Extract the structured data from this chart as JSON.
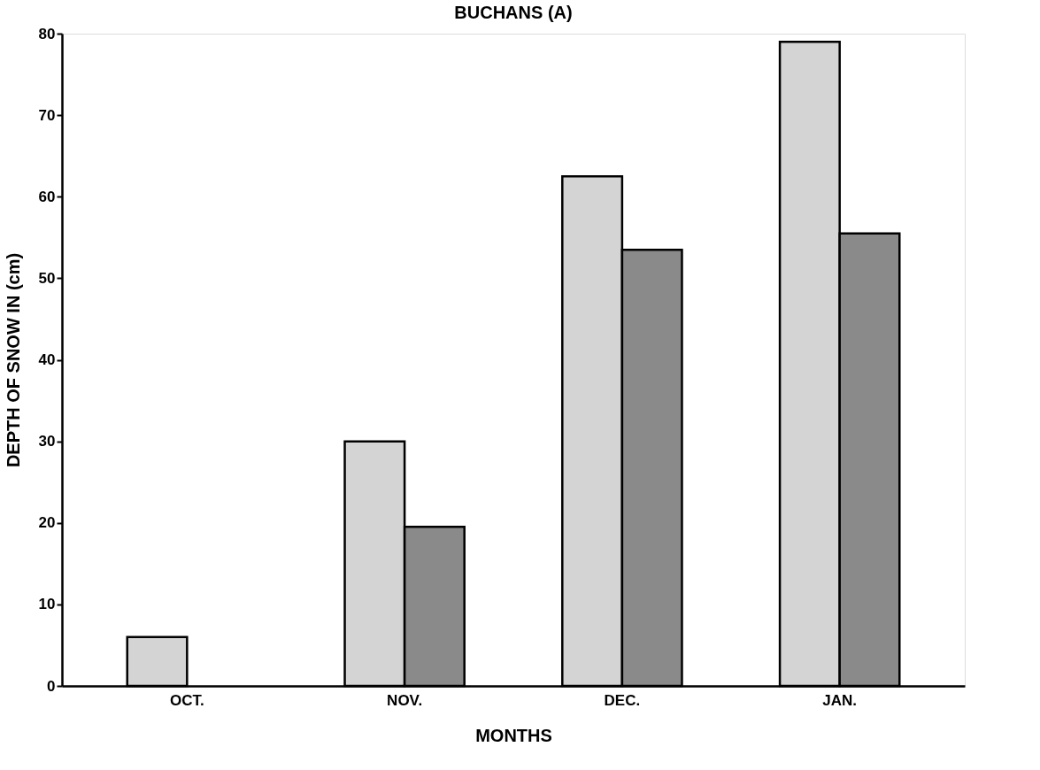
{
  "chart_data": {
    "type": "bar",
    "title": "BUCHANS (A)",
    "xlabel": "MONTHS",
    "ylabel": "DEPTH OF SNOW IN (cm)",
    "categories": [
      "OCT.",
      "NOV.",
      "DEC.",
      "JAN."
    ],
    "series": [
      {
        "color": "#d4d4d4",
        "values": [
          6,
          30,
          62.5,
          79
        ]
      },
      {
        "color": "#8a8a8a",
        "values": [
          null,
          19.5,
          53.5,
          55.5
        ]
      }
    ],
    "ylim": [
      0,
      80
    ],
    "yticks": [
      0,
      10,
      20,
      30,
      40,
      50,
      60,
      70,
      80
    ],
    "grid": false,
    "legend": false
  }
}
